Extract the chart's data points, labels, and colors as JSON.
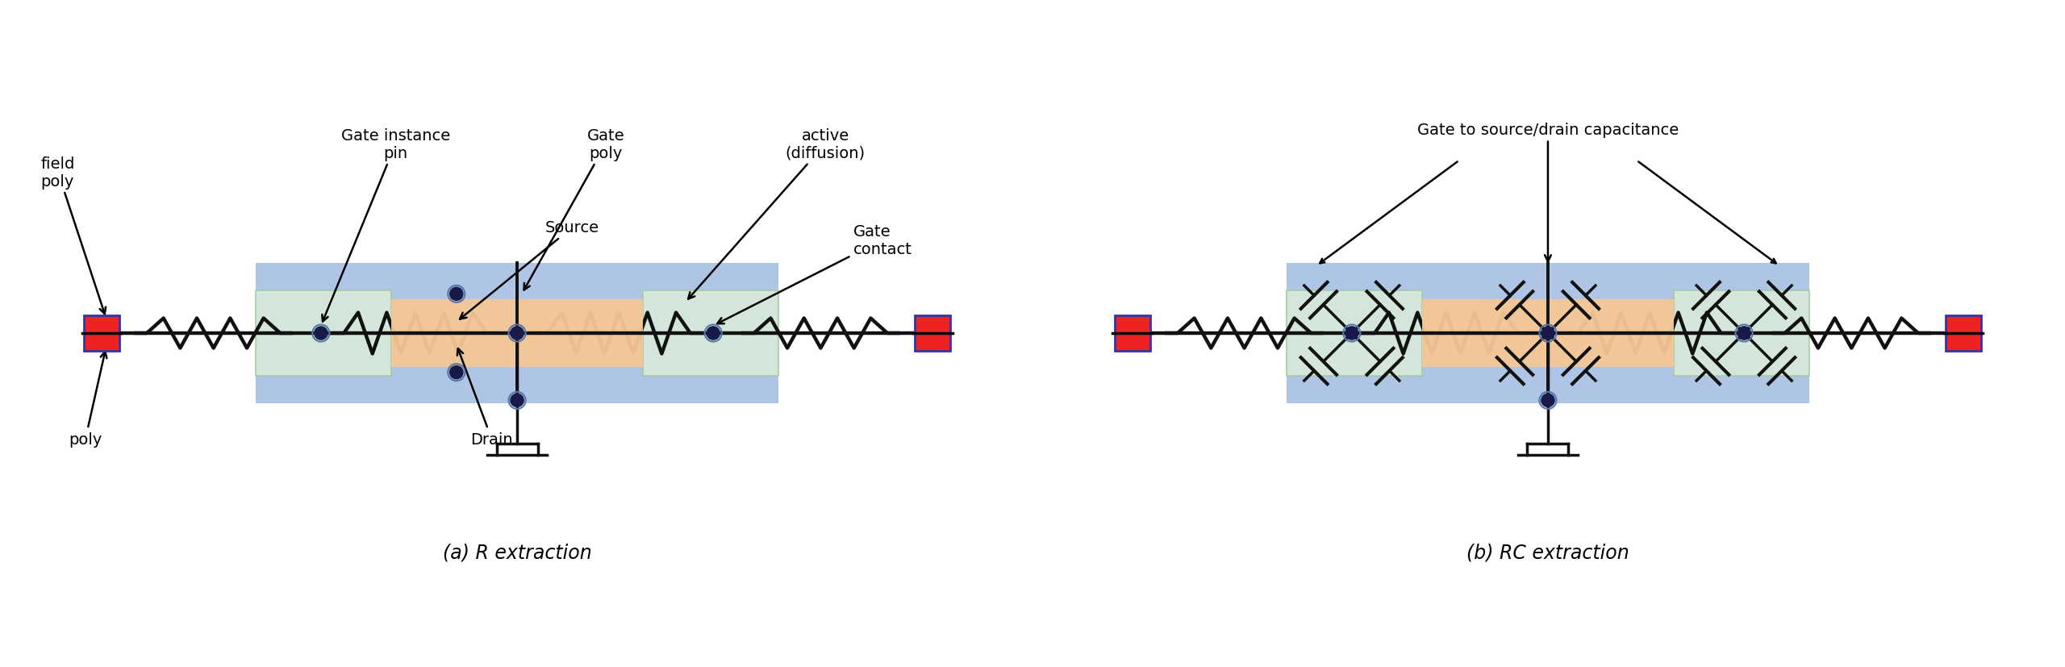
{
  "fig_width": 25.6,
  "fig_height": 8.28,
  "bg_color": "#ffffff",
  "blue_color": "#7b9fd4",
  "orange_color": "#f5c896",
  "green_color": "#d8ead8",
  "green_edge_color": "#a0c8a0",
  "red_sq_color": "#ee2222",
  "wire_color": "#111111",
  "node_color": "#1a1a4a",
  "label_a": "(a) R extraction",
  "label_b": "(b) RC extraction",
  "ann_field_poly": "field\npoly",
  "ann_poly": "poly",
  "ann_gate_instance_pin": "Gate instance\npin",
  "ann_gate_poly": "Gate\npoly",
  "ann_active": "active\n(diffusion)",
  "ann_gate_contact": "Gate\ncontact",
  "ann_source": "Source",
  "ann_drain": "Drain",
  "ann_cap": "Gate to source/drain capacitance",
  "font_size_ann": 14,
  "font_size_caption": 17
}
